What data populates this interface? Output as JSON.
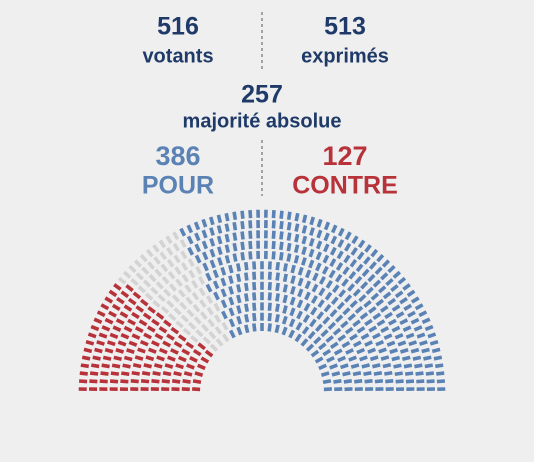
{
  "votants": {
    "value": 516,
    "label": "votants"
  },
  "exprimes": {
    "value": 513,
    "label": "exprimés"
  },
  "majorite": {
    "value": 257,
    "label": "majorité absolue"
  },
  "pour": {
    "value": 386,
    "label": "POUR",
    "color": "#5b82b5"
  },
  "contre": {
    "value": 127,
    "label": "CONTRE",
    "color": "#b8323a"
  }
}
